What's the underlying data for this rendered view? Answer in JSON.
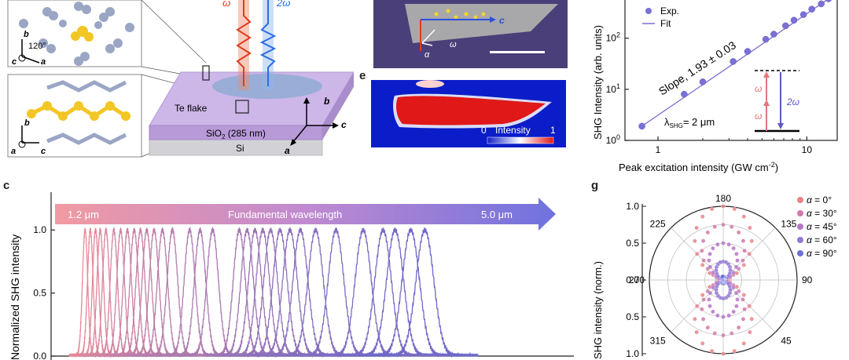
{
  "panels": {
    "c_letter": "c",
    "e_letter": "e",
    "g_letter": "g"
  },
  "panel_a": {
    "top_inset": {
      "axis_b": "b",
      "axis_c": "c",
      "axis_a": "a",
      "angle": "120°"
    },
    "bottom_inset": {
      "axis_b": "b",
      "axis_a": "a",
      "axis_c": "c"
    },
    "beam_in": "ω",
    "beam_out": "2ω",
    "label_flake": "Te flake",
    "label_sio2_pre": "SiO",
    "label_sio2_sub": "2",
    "label_sio2_post": " (285 nm)",
    "label_si": "Si",
    "axes": {
      "b": "b",
      "c": "c",
      "a": "a"
    }
  },
  "panel_d": {
    "axis_c": "c",
    "alpha": "α",
    "omega": "ω"
  },
  "panel_e": {
    "colorbar_min": "0",
    "colorbar_label": "Intensity",
    "colorbar_max": "1"
  },
  "chart_data": [
    {
      "panel": "f",
      "type": "scatter",
      "xlabel_pre": "Peak excitation intensity (GW cm",
      "xlabel_sup": "-2",
      "xlabel_post": ")",
      "ylabel": "SHG Intensity (arb. units)",
      "x_scale": "log",
      "y_scale": "log",
      "xlim": [
        0.6,
        16
      ],
      "ylim": [
        1,
        600
      ],
      "xticks": [
        "1",
        "10"
      ],
      "yticks_base": "10",
      "yticks_exp": [
        "0",
        "1",
        "2"
      ],
      "legend": [
        {
          "name": "Exp.",
          "marker": "circle"
        },
        {
          "name": "Fit",
          "marker": "line"
        }
      ],
      "legend_placement": "top-left",
      "slope_text": "Slope, 1.93 ± 0.03",
      "lambda_pre": "λ",
      "lambda_sub": "SHG",
      "lambda_post": "= 2 μm",
      "inset": {
        "omega1": "ω",
        "omega2": "ω",
        "two_omega": "2ω"
      },
      "x": [
        0.78,
        1.5,
        2.0,
        3.2,
        4.0,
        5.3,
        6.0,
        7.2,
        8.2,
        9.5,
        10.8,
        12.5,
        14.0
      ],
      "y": [
        1.9,
        8,
        14,
        35,
        55,
        95,
        120,
        175,
        225,
        290,
        370,
        470,
        590
      ],
      "color": "#7b70d6"
    },
    {
      "panel": "c",
      "type": "line",
      "ylabel": "Normalized SHG intensity",
      "yticks": [
        "0.0",
        "0.5",
        "1.0"
      ],
      "ylim": [
        0,
        1.3
      ],
      "arrow_start": "1.2 μm",
      "arrow_label": "Fundamental wavelength",
      "arrow_end": "5.0 μm",
      "peak_centers": [
        0.065,
        0.075,
        0.085,
        0.094,
        0.105,
        0.12,
        0.133,
        0.146,
        0.159,
        0.171,
        0.183,
        0.197,
        0.213,
        0.232,
        0.265,
        0.285,
        0.309,
        0.36,
        0.375,
        0.39,
        0.405,
        0.42,
        0.438,
        0.457,
        0.477,
        0.506,
        0.545,
        0.597,
        0.635,
        0.658,
        0.688,
        0.715
      ],
      "color_start": "#e88a98",
      "color_end": "#6d68c8"
    },
    {
      "panel": "g",
      "type": "polar",
      "ylabel": "SHG intensity (norm.)",
      "radial_ticks": [
        "1.0",
        "0.5",
        "0.0",
        "0.5",
        "1.0"
      ],
      "angle_labels": [
        "180",
        "135",
        "90",
        "45",
        "315",
        "270",
        "225"
      ],
      "legend_prefix": "α",
      "series": [
        {
          "name": "= 0°",
          "color": "#e8848c",
          "amp": 1.0
        },
        {
          "name": "= 30°",
          "color": "#d07aa8",
          "amp": 0.75
        },
        {
          "name": "= 45°",
          "color": "#b477c8",
          "amp": 0.5
        },
        {
          "name": "= 60°",
          "color": "#9277d4",
          "amp": 0.25
        },
        {
          "name": "= 90°",
          "color": "#6f6fd8",
          "amp": 0.05
        }
      ]
    }
  ]
}
